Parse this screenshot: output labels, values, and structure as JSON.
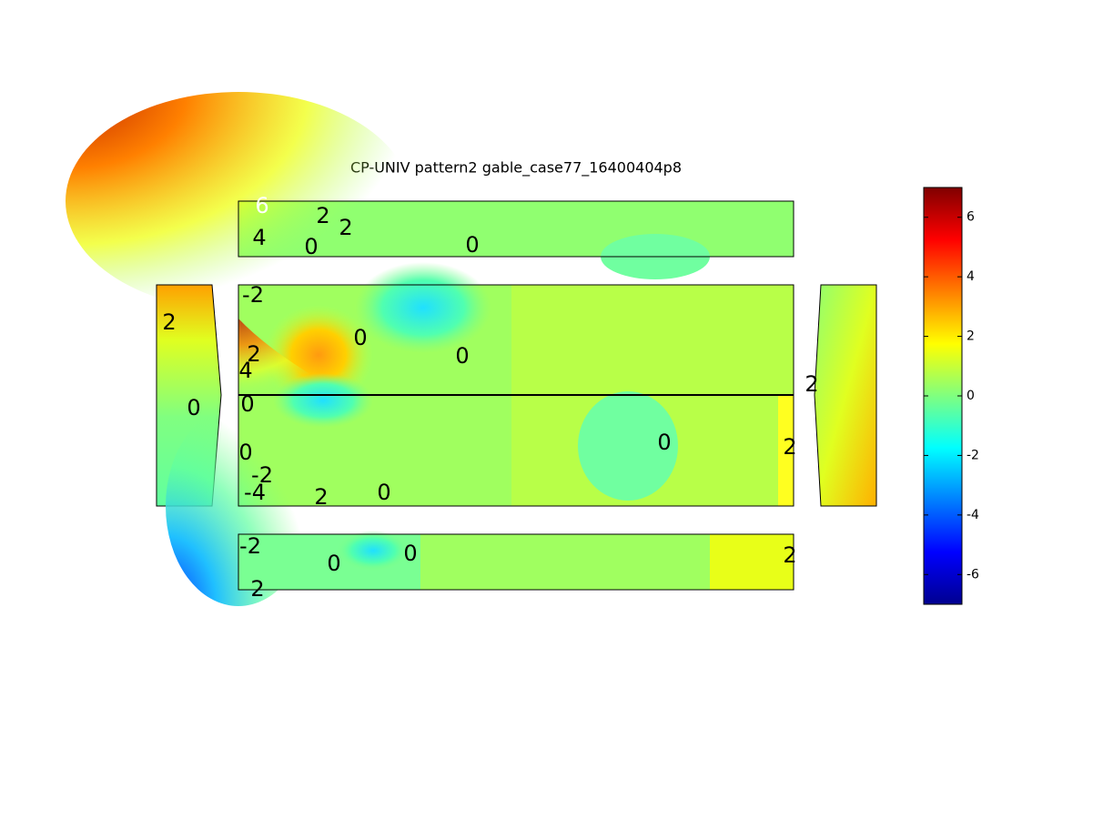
{
  "chart_data": {
    "type": "contour",
    "title": "CP-UNIV pattern2 gable_case77_16400404p8",
    "colorbar": {
      "ylim": [
        -7,
        7
      ],
      "yticks": [
        -6,
        -4,
        -2,
        0,
        2,
        4,
        6
      ],
      "colormap": "jet"
    },
    "panels": [
      {
        "labels": [
          6,
          4,
          2,
          2,
          0,
          0
        ]
      },
      {
        "labels": [
          2,
          0
        ]
      },
      {
        "labels": [
          -2,
          0,
          0,
          2,
          4,
          0,
          0,
          -2,
          -4,
          2,
          0,
          0,
          2
        ]
      },
      {
        "labels": [
          2
        ]
      },
      {
        "labels": [
          -2,
          0,
          0,
          2,
          2
        ]
      }
    ]
  }
}
